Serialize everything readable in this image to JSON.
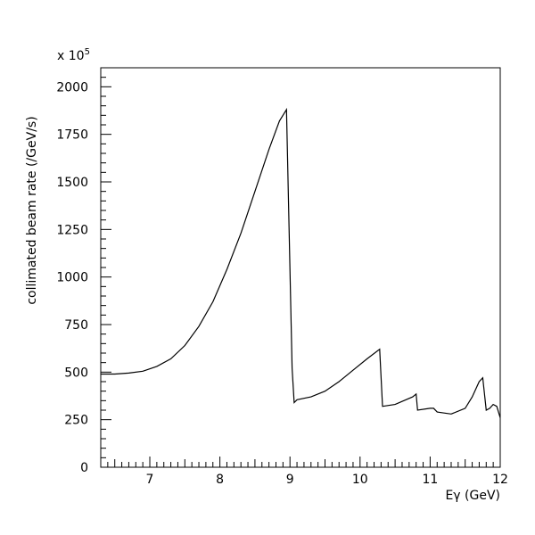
{
  "chart_data": {
    "type": "line",
    "title": "",
    "xlabel": "Eγ (GeV)",
    "ylabel": "collimated beam rate (/GeV/s)",
    "y_multiplier": "x 10",
    "y_multiplier_exponent": "5",
    "xlim": [
      6.3,
      12.0
    ],
    "ylim": [
      0,
      2100
    ],
    "x_ticks": [
      {
        "value": 7,
        "label": "7"
      },
      {
        "value": 8,
        "label": "8"
      },
      {
        "value": 9,
        "label": "9"
      },
      {
        "value": 10,
        "label": "10"
      },
      {
        "value": 11,
        "label": "11"
      },
      {
        "value": 12,
        "label": "12"
      }
    ],
    "y_ticks": [
      {
        "value": 0,
        "label": "0"
      },
      {
        "value": 250,
        "label": "250"
      },
      {
        "value": 500,
        "label": "500"
      },
      {
        "value": 750,
        "label": "750"
      },
      {
        "value": 1000,
        "label": "1000"
      },
      {
        "value": 1250,
        "label": "1250"
      },
      {
        "value": 1500,
        "label": "1500"
      },
      {
        "value": 1750,
        "label": "1750"
      },
      {
        "value": 2000,
        "label": "2000"
      }
    ],
    "grid": false,
    "series": [
      {
        "x": [
          6.3,
          6.5,
          6.7,
          6.9,
          7.1,
          7.3,
          7.5,
          7.7,
          7.9,
          8.1,
          8.3,
          8.5,
          8.7,
          8.85,
          8.95,
          9.03,
          9.06,
          9.1,
          9.3,
          9.5,
          9.7,
          9.9,
          10.1,
          10.28,
          10.32,
          10.5,
          10.75,
          10.8,
          10.82,
          11.0,
          11.05,
          11.1,
          11.3,
          11.5,
          11.6,
          11.7,
          11.75,
          11.8,
          11.85,
          11.9,
          11.95,
          12.0
        ],
        "y": [
          490,
          490,
          495,
          505,
          530,
          570,
          640,
          740,
          870,
          1040,
          1230,
          1450,
          1670,
          1820,
          1880,
          520,
          340,
          355,
          370,
          400,
          450,
          510,
          570,
          620,
          320,
          330,
          370,
          385,
          300,
          310,
          310,
          290,
          280,
          310,
          370,
          450,
          470,
          300,
          310,
          330,
          320,
          260
        ]
      }
    ]
  }
}
